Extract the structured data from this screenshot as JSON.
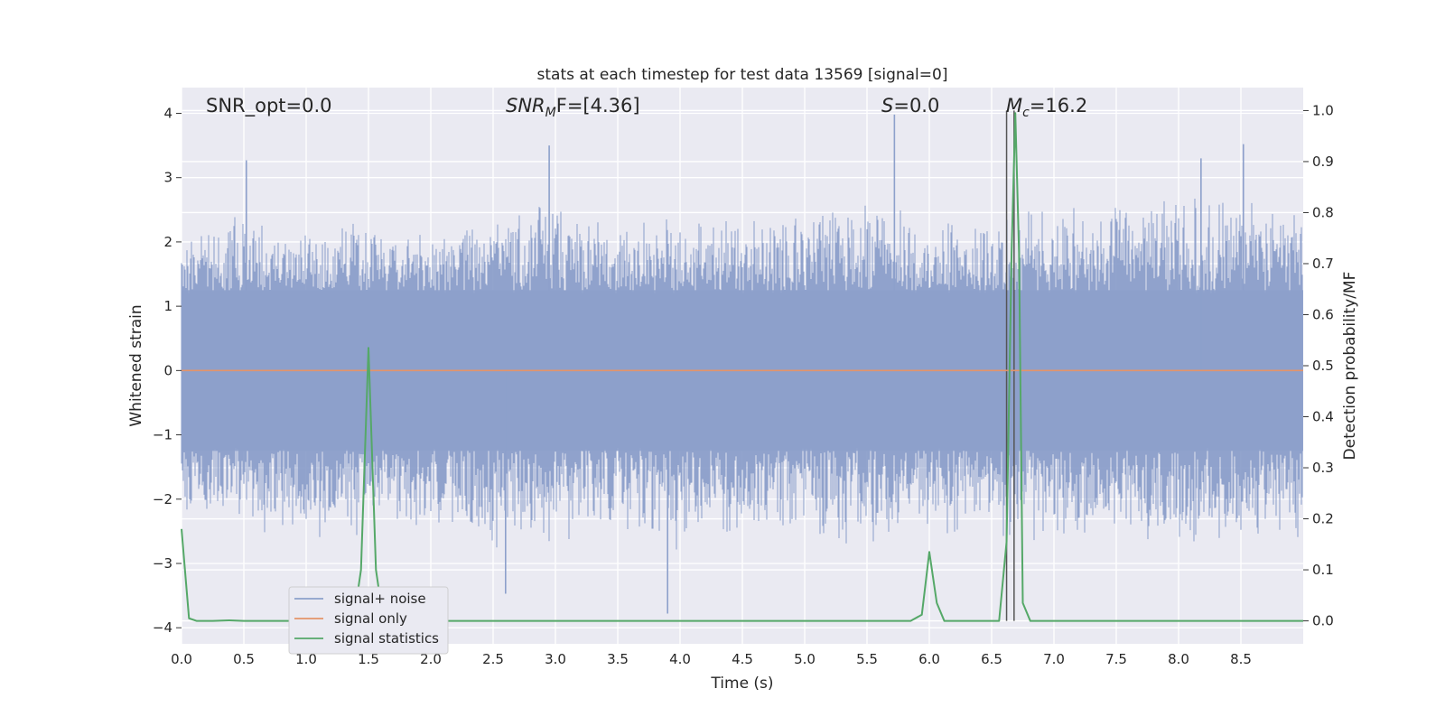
{
  "chart_data": {
    "type": "line",
    "title": "stats at each timestep for test data 13569 [signal=0]",
    "xlabel": "Time (s)",
    "ylabel": "Whitened strain",
    "y2label": "Detection probability/MF",
    "xlim": [
      0,
      9.0
    ],
    "ylim": [
      -4.25,
      4.4
    ],
    "y2lim": [
      -0.045,
      1.045
    ],
    "x_ticks": [
      "0.0",
      "0.5",
      "1.0",
      "1.5",
      "2.0",
      "2.5",
      "3.0",
      "3.5",
      "4.0",
      "4.5",
      "5.0",
      "5.5",
      "6.0",
      "6.5",
      "7.0",
      "7.5",
      "8.0",
      "8.5"
    ],
    "y_ticks": [
      "4",
      "3",
      "2",
      "1",
      "0",
      "−1",
      "−2",
      "−3",
      "−4"
    ],
    "y2_ticks": [
      "1.0",
      "0.9",
      "0.8",
      "0.7",
      "0.6",
      "0.5",
      "0.4",
      "0.3",
      "0.2",
      "0.1",
      "0.0"
    ],
    "grid": true,
    "legend_position": "lower-left",
    "annotations": {
      "snr_opt": "SNR_opt=0.0",
      "snr_mf_main": "SNR",
      "snr_mf_sub": "M",
      "snr_mf_rest": "F=[4.36]",
      "s_italic": "S",
      "s_rest": "=0.0",
      "mc_italic": "M",
      "mc_sub": "c",
      "mc_rest": "=16.2"
    },
    "series": [
      {
        "name": "signal+ noise",
        "color": "#8da0cb",
        "axis": "left",
        "noise_envelope": {
          "x": [
            0.0,
            0.5,
            1.0,
            1.5,
            2.0,
            2.5,
            3.0,
            3.5,
            4.0,
            4.5,
            5.0,
            5.5,
            6.0,
            6.5,
            7.0,
            7.5,
            8.0,
            8.5,
            9.0
          ],
          "upper": [
            2.0,
            2.3,
            2.1,
            2.2,
            2.0,
            2.3,
            2.6,
            2.2,
            2.3,
            2.2,
            2.3,
            2.5,
            2.2,
            2.3,
            2.4,
            2.4,
            2.6,
            2.6,
            2.3
          ],
          "lower": [
            -2.2,
            -2.5,
            -2.6,
            -2.4,
            -2.3,
            -2.7,
            -2.6,
            -2.4,
            -2.6,
            -2.4,
            -2.5,
            -2.6,
            -2.5,
            -2.4,
            -2.6,
            -2.4,
            -2.7,
            -2.5,
            -2.5
          ]
        },
        "notable_peaks": [
          {
            "x": 0.52,
            "y": 3.27
          },
          {
            "x": 2.95,
            "y": 3.5
          },
          {
            "x": 5.72,
            "y": 3.98
          },
          {
            "x": 8.52,
            "y": 3.52
          },
          {
            "x": 3.9,
            "y": -3.78
          },
          {
            "x": 2.6,
            "y": -3.47
          },
          {
            "x": 8.18,
            "y": 3.3
          }
        ]
      },
      {
        "name": "signal only",
        "color": "#e4946a",
        "axis": "left",
        "x": [
          0.0,
          9.0
        ],
        "y": [
          0.0,
          0.0
        ]
      },
      {
        "name": "signal statistics",
        "color": "#55a868",
        "axis": "right",
        "x": [
          0.0,
          0.06,
          0.12,
          0.25,
          0.38,
          0.5,
          0.62,
          0.75,
          0.88,
          1.0,
          1.12,
          1.25,
          1.38,
          1.44,
          1.5,
          1.56,
          1.62,
          1.75,
          2.0,
          2.5,
          3.0,
          3.5,
          4.0,
          4.5,
          5.0,
          5.5,
          5.85,
          5.94,
          6.0,
          6.06,
          6.12,
          6.25,
          6.5,
          6.56,
          6.62,
          6.66,
          6.69,
          6.72,
          6.75,
          6.81,
          6.88,
          7.0,
          7.5,
          8.0,
          8.5,
          9.0
        ],
        "y": [
          0.18,
          0.005,
          0.0,
          0.0,
          0.001,
          0.0,
          0.0,
          0.0,
          0.0,
          0.0,
          0.0,
          0.0,
          0.0,
          0.1,
          0.535,
          0.1,
          0.0,
          0.0,
          0.0,
          0.0,
          0.0,
          0.0,
          0.0,
          0.0,
          0.0,
          0.0,
          0.0,
          0.012,
          0.135,
          0.035,
          0.0,
          0.0,
          0.0,
          0.0,
          0.155,
          0.72,
          0.995,
          0.72,
          0.035,
          0.0,
          0.0,
          0.0,
          0.0,
          0.0,
          0.0,
          0.0
        ]
      }
    ],
    "vertical_lines": [
      {
        "x": 6.62,
        "color": "#555555"
      },
      {
        "x": 6.68,
        "color": "#555555"
      }
    ]
  }
}
